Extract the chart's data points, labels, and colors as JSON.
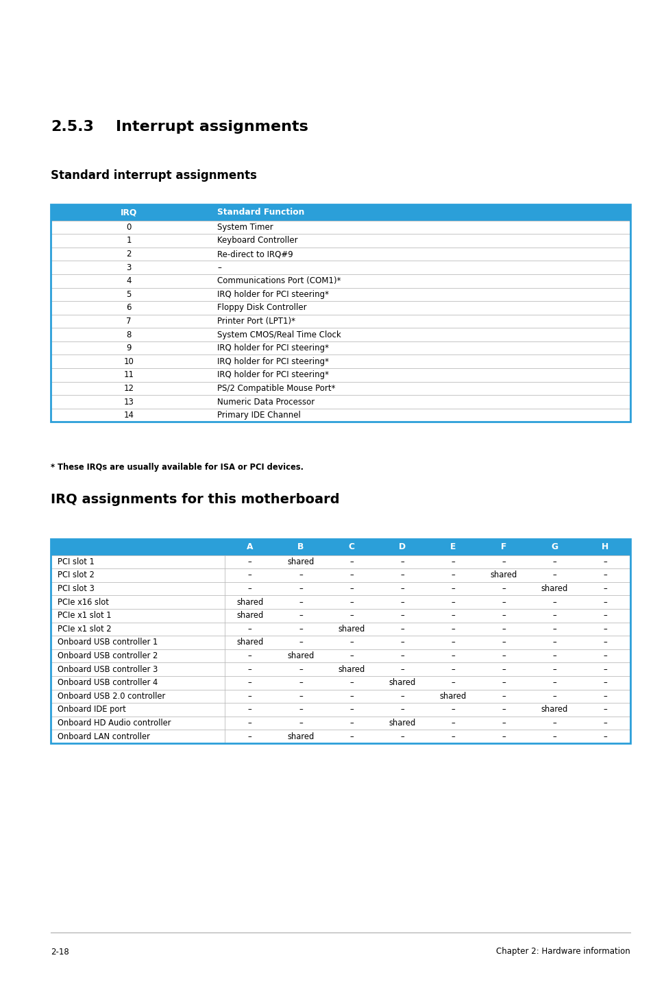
{
  "page_title_num": "2.5.3",
  "page_title_text": "Interrupt assignments",
  "section1_title": "Standard interrupt assignments",
  "section2_title": "IRQ assignments for this motherboard",
  "footnote": "* These IRQs are usually available for ISA or PCI devices.",
  "footer_left": "2-18",
  "footer_right": "Chapter 2: Hardware information",
  "header_color": "#2B9FD9",
  "header_text_color": "#FFFFFF",
  "table1_header": [
    "IRQ",
    "Standard Function"
  ],
  "table1_rows": [
    [
      "0",
      "System Timer"
    ],
    [
      "1",
      "Keyboard Controller"
    ],
    [
      "2",
      "Re-direct to IRQ#9"
    ],
    [
      "3",
      "–"
    ],
    [
      "4",
      "Communications Port (COM1)*"
    ],
    [
      "5",
      "IRQ holder for PCI steering*"
    ],
    [
      "6",
      "Floppy Disk Controller"
    ],
    [
      "7",
      "Printer Port (LPT1)*"
    ],
    [
      "8",
      "System CMOS/Real Time Clock"
    ],
    [
      "9",
      "IRQ holder for PCI steering*"
    ],
    [
      "10",
      "IRQ holder for PCI steering*"
    ],
    [
      "11",
      "IRQ holder for PCI steering*"
    ],
    [
      "12",
      "PS/2 Compatible Mouse Port*"
    ],
    [
      "13",
      "Numeric Data Processor"
    ],
    [
      "14",
      "Primary IDE Channel"
    ]
  ],
  "table2_header": [
    "",
    "A",
    "B",
    "C",
    "D",
    "E",
    "F",
    "G",
    "H"
  ],
  "table2_rows": [
    [
      "PCI slot 1",
      "–",
      "shared",
      "–",
      "–",
      "–",
      "–",
      "–",
      "–"
    ],
    [
      "PCI slot 2",
      "–",
      "–",
      "–",
      "–",
      "–",
      "shared",
      "–",
      "–"
    ],
    [
      "PCI slot 3",
      "–",
      "–",
      "–",
      "–",
      "–",
      "–",
      "shared",
      "–"
    ],
    [
      "PCIe x16 slot",
      "shared",
      "–",
      "–",
      "–",
      "–",
      "–",
      "–",
      "–"
    ],
    [
      "PCIe x1 slot 1",
      "shared",
      "–",
      "–",
      "–",
      "–",
      "–",
      "–",
      "–"
    ],
    [
      "PCIe x1 slot 2",
      "–",
      "–",
      "shared",
      "–",
      "–",
      "–",
      "–",
      "–"
    ],
    [
      "Onboard USB controller 1",
      "shared",
      "–",
      "–",
      "–",
      "–",
      "–",
      "–",
      "–"
    ],
    [
      "Onboard USB controller 2",
      "–",
      "shared",
      "–",
      "–",
      "–",
      "–",
      "–",
      "–"
    ],
    [
      "Onboard USB controller 3",
      "–",
      "–",
      "shared",
      "–",
      "–",
      "–",
      "–",
      "–"
    ],
    [
      "Onboard USB controller 4",
      "–",
      "–",
      "–",
      "shared",
      "–",
      "–",
      "–",
      "–"
    ],
    [
      "Onboard USB 2.0 controller",
      "–",
      "–",
      "–",
      "–",
      "shared",
      "–",
      "–",
      "–"
    ],
    [
      "Onboard IDE port",
      "–",
      "–",
      "–",
      "–",
      "–",
      "–",
      "shared",
      "–"
    ],
    [
      "Onboard HD Audio controller",
      "–",
      "–",
      "–",
      "shared",
      "–",
      "–",
      "–",
      "–"
    ],
    [
      "Onboard LAN controller",
      "–",
      "shared",
      "–",
      "–",
      "–",
      "–",
      "–",
      "–"
    ]
  ],
  "background_color": "#FFFFFF",
  "border_color": "#2B9FD9",
  "row_line_color": "#BBBBBB",
  "cell_text_color": "#000000",
  "fig_width": 9.54,
  "fig_height": 14.38,
  "dpi": 100
}
